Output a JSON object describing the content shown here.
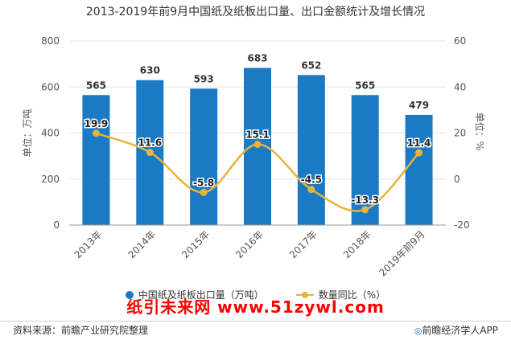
{
  "title": "2013-2019年前9月中国纸及纸板出口量、出口金额统计及增长情况",
  "legend": {
    "bar_label": "中国纸及纸板出口量（万吨）",
    "line_label": "数量同比（%）"
  },
  "watermark": "纸引未来网 www.51zywl.com",
  "footer": {
    "source": "资料来源：前瞻产业研究院整理",
    "app": "前瞻经济学人APP",
    "app_icon": "circle-icon"
  },
  "colors": {
    "bar": "#1b7ac4",
    "line": "#e4b43c",
    "grid": "#e6e6e6",
    "axis_text": "#555555"
  },
  "chart_data": {
    "type": "bar",
    "categories": [
      "2013年",
      "2014年",
      "2015年",
      "2016年",
      "2017年",
      "2018年",
      "2019年前9月"
    ],
    "series": [
      {
        "name": "中国纸及纸板出口量（万吨）",
        "type": "bar",
        "axis": "left",
        "values": [
          565,
          630,
          593,
          683,
          652,
          565,
          479
        ]
      },
      {
        "name": "数量同比（%）",
        "type": "line",
        "axis": "right",
        "values": [
          19.9,
          11.6,
          -5.8,
          15.1,
          -4.5,
          -13.3,
          11.4
        ]
      }
    ],
    "ylabel": "单位：万吨",
    "y2label": "单位：%",
    "ylim": [
      0,
      800
    ],
    "y2lim": [
      -20,
      60
    ],
    "yticks": [
      0,
      200,
      400,
      600,
      800
    ],
    "y2ticks": [
      -20,
      0,
      20,
      40,
      60
    ],
    "grid": true,
    "legend_position": "bottom"
  }
}
